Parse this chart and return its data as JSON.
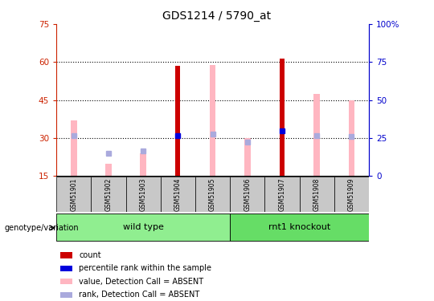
{
  "title": "GDS1214 / 5790_at",
  "samples": [
    "GSM51901",
    "GSM51902",
    "GSM51903",
    "GSM51904",
    "GSM51905",
    "GSM51906",
    "GSM51907",
    "GSM51908",
    "GSM51909"
  ],
  "count_values": [
    null,
    null,
    null,
    58.5,
    null,
    null,
    61.5,
    null,
    null
  ],
  "percentile_rank_values": [
    null,
    null,
    null,
    31.0,
    null,
    null,
    33.0,
    null,
    null
  ],
  "value_absent": [
    37.0,
    20.0,
    24.0,
    null,
    59.0,
    30.0,
    null,
    47.5,
    45.0
  ],
  "rank_absent": [
    31.0,
    24.0,
    25.0,
    null,
    31.5,
    28.5,
    null,
    31.0,
    30.5
  ],
  "ylim": [
    15,
    75
  ],
  "yticks": [
    15,
    30,
    45,
    60,
    75
  ],
  "right_ytick_labels": [
    "0",
    "25",
    "50",
    "75",
    "100%"
  ],
  "right_ytick_positions": [
    15,
    30,
    45,
    60,
    75
  ],
  "grid_lines": [
    30,
    45,
    60
  ],
  "left_axis_color": "#CC2200",
  "right_axis_color": "#0000CC",
  "count_color": "#CC0000",
  "percentile_color": "#0000DD",
  "value_absent_color": "#FFB6C1",
  "rank_absent_color": "#AAAADD",
  "wt_color": "#90EE90",
  "ko_color": "#66DD66"
}
